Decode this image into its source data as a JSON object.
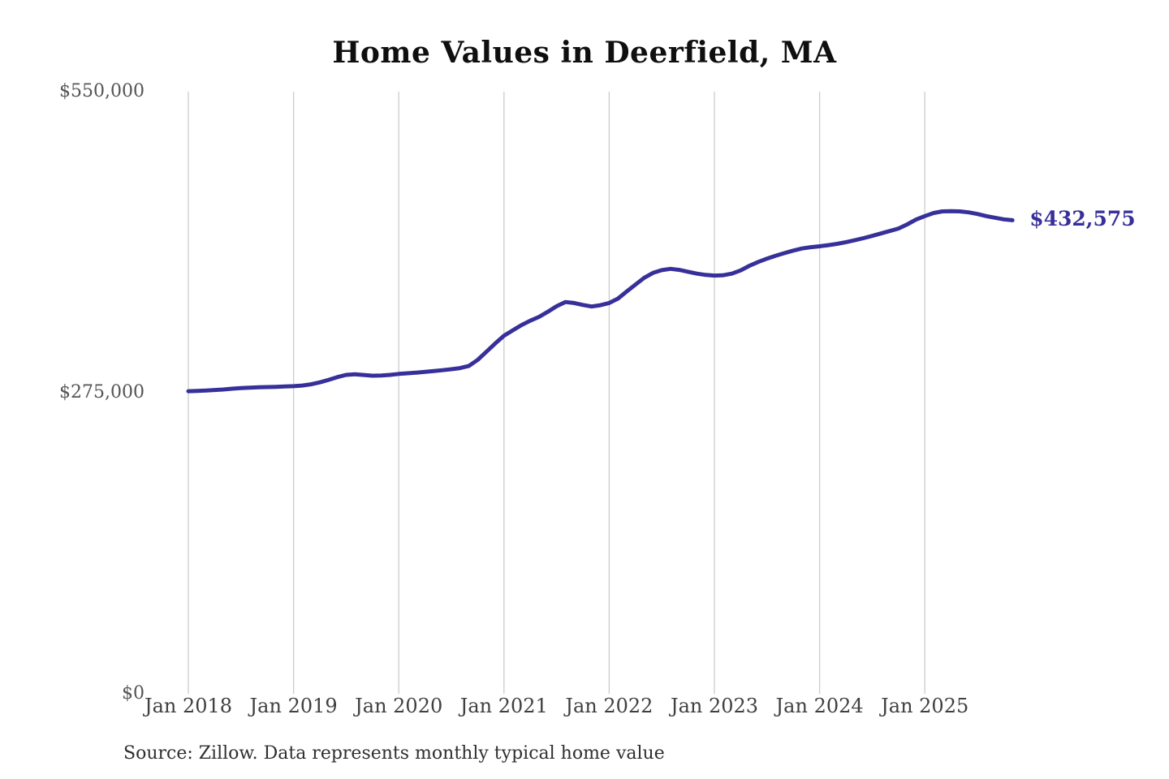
{
  "title": "Home Values in Deerfield, MA",
  "source_note": "Source: Zillow. Data represents monthly typical home value",
  "end_value_label": "$432,575",
  "colors": {
    "line": "#37309a",
    "grid": "#cccccc",
    "title_text": "#0f0f0f",
    "axis_text": "#4c4c4c",
    "end_label_text": "#37309a",
    "background": "#ffffff"
  },
  "chart_data": {
    "type": "line",
    "title": "Home Values in Deerfield, MA",
    "xlabel": "",
    "ylabel": "",
    "ylim": [
      0,
      550000
    ],
    "grid": "vertical-only",
    "legend": "none",
    "series_name": "Monthly typical home value",
    "frequency": "monthly",
    "start_month": "Jan 2018",
    "end_month": "Nov 2025",
    "final_value": 432575,
    "y_ticks": [
      {
        "value": 550000,
        "label": "$550,000"
      },
      {
        "value": 275000,
        "label": "$275,000"
      },
      {
        "value": 0,
        "label": "$0"
      }
    ],
    "x_ticks": [
      "Jan 2018",
      "Jan 2019",
      "Jan 2020",
      "Jan 2021",
      "Jan 2022",
      "Jan 2023",
      "Jan 2024",
      "Jan 2025"
    ],
    "values": [
      276400,
      276700,
      277000,
      277500,
      278000,
      278700,
      279300,
      279700,
      280000,
      280200,
      280400,
      280700,
      281000,
      281600,
      282700,
      284500,
      286800,
      289300,
      291300,
      291900,
      291200,
      290600,
      290700,
      291300,
      292200,
      292800,
      293400,
      294100,
      294800,
      295600,
      296500,
      297500,
      299500,
      305000,
      312500,
      320000,
      327000,
      332000,
      336800,
      340800,
      344300,
      349000,
      354000,
      357900,
      357000,
      355200,
      353800,
      355000,
      357000,
      361000,
      367500,
      373800,
      380000,
      384500,
      387000,
      388200,
      387200,
      385500,
      383800,
      382600,
      382000,
      382300,
      383800,
      386800,
      391000,
      394500,
      397500,
      400200,
      402600,
      404900,
      406800,
      408000,
      408800,
      409800,
      411000,
      412600,
      414300,
      416200,
      418300,
      420500,
      422700,
      425000,
      428800,
      433200,
      436400,
      439200,
      440700,
      440900,
      440700,
      439800,
      438300,
      436400,
      434900,
      433400,
      432575
    ]
  }
}
